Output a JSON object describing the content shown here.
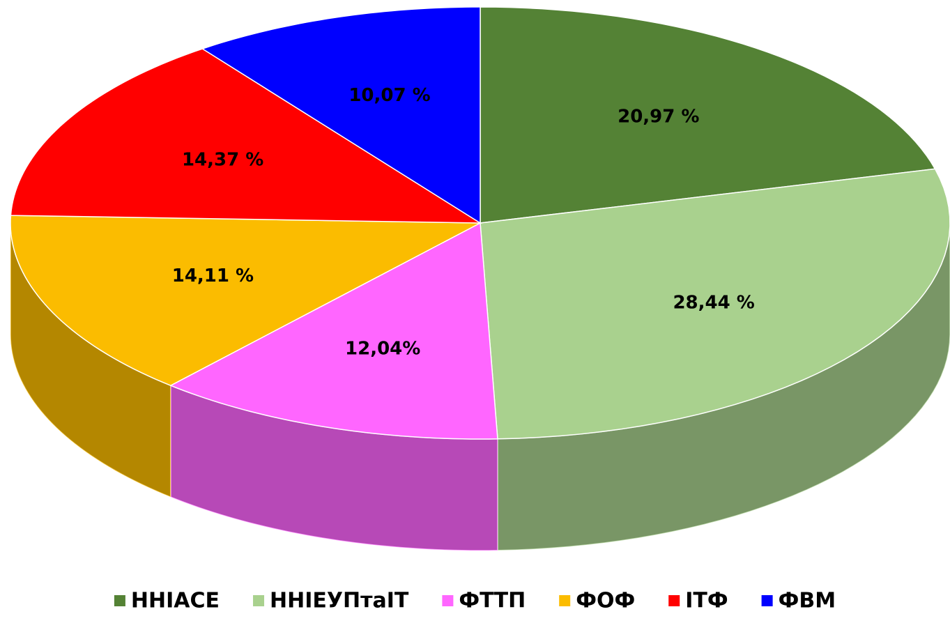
{
  "chart_data": {
    "type": "pie",
    "three_d": true,
    "categories": [
      "ННІАСЕ",
      "ННІЕУПтаІТ",
      "ФТТП",
      "ФОФ",
      "ІТФ",
      "ФВМ"
    ],
    "values": [
      20.97,
      28.44,
      12.04,
      14.11,
      14.37,
      10.07
    ],
    "value_labels": [
      "20,97 %",
      "28,44 %",
      "12,04%",
      "14,11 %",
      "14,37 %",
      "10,07 %"
    ],
    "colors": [
      "#548235",
      "#a9d18e",
      "#ff66ff",
      "#fbbc00",
      "#ff0000",
      "#0000ff"
    ],
    "legend": "bottom"
  }
}
